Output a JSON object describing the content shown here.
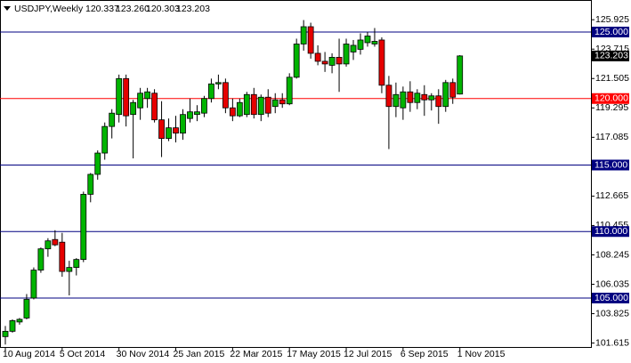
{
  "chart_data": {
    "type": "candlestick",
    "title": "USDJPY,Weekly",
    "header_ohlc": [
      "120.337",
      "123.260",
      "120.303",
      "123.203"
    ],
    "categories": [
      "10 Aug 2014",
      null,
      null,
      null,
      null,
      null,
      null,
      null,
      "5 Oct 2014",
      null,
      null,
      null,
      null,
      null,
      null,
      null,
      "30 Nov 2014",
      null,
      null,
      null,
      null,
      null,
      null,
      null,
      "25 Jan 2015",
      null,
      null,
      null,
      null,
      null,
      null,
      null,
      "22 Mar 2015",
      null,
      null,
      null,
      null,
      null,
      null,
      null,
      "17 May 2015",
      null,
      null,
      null,
      null,
      null,
      null,
      null,
      "12 Jul 2015",
      null,
      null,
      null,
      null,
      null,
      null,
      null,
      "6 Sep 2015",
      null,
      null,
      null,
      null,
      null,
      null,
      null,
      "1 Nov 2015"
    ],
    "open": [
      102.1,
      102.5,
      103.2,
      103.5,
      105.0,
      107.1,
      108.7,
      109.4,
      109.2,
      107.0,
      107.3,
      107.9,
      112.8,
      114.3,
      115.9,
      117.9,
      118.8,
      121.5,
      118.8,
      119.3,
      120.0,
      120.4,
      118.4,
      117.0,
      117.8,
      117.4,
      118.5,
      118.8,
      118.9,
      120.0,
      121.1,
      121.2,
      119.3,
      118.7,
      118.8,
      120.3,
      118.8,
      120.1,
      119.4,
      119.9,
      119.6,
      121.6,
      124.1,
      125.4,
      123.4,
      122.8,
      122.5,
      123.1,
      122.6,
      123.5,
      123.7,
      124.2,
      124.1,
      124.4,
      121.0,
      119.4,
      119.3,
      120.5,
      119.7,
      120.3,
      119.9,
      120.2,
      119.4,
      121.2,
      120.337
    ],
    "high": [
      102.9,
      103.4,
      103.5,
      105.3,
      107.3,
      108.8,
      109.5,
      110.1,
      109.9,
      107.8,
      108.0,
      113.0,
      114.4,
      116.1,
      118.2,
      119.2,
      121.8,
      121.8,
      119.9,
      120.8,
      120.8,
      120.7,
      119.8,
      118.5,
      118.7,
      119.2,
      120.0,
      119.5,
      120.2,
      121.5,
      121.8,
      121.5,
      120.0,
      120.0,
      120.5,
      120.8,
      120.3,
      120.7,
      120.4,
      120.4,
      121.9,
      124.5,
      125.9,
      125.7,
      124.0,
      123.5,
      123.4,
      124.5,
      124.5,
      124.4,
      124.9,
      125.0,
      125.3,
      124.6,
      121.7,
      121.2,
      120.9,
      121.3,
      120.7,
      121.0,
      120.4,
      120.7,
      121.4,
      121.5,
      123.26
    ],
    "low": [
      101.5,
      102.4,
      103.0,
      103.4,
      104.9,
      106.9,
      108.1,
      108.9,
      106.6,
      105.2,
      106.7,
      107.7,
      112.2,
      113.9,
      115.4,
      117.0,
      118.2,
      117.9,
      115.5,
      118.4,
      119.3,
      118.2,
      115.6,
      116.8,
      116.7,
      116.9,
      118.2,
      118.3,
      118.6,
      119.7,
      120.7,
      118.9,
      118.3,
      118.6,
      118.6,
      118.5,
      118.3,
      118.6,
      118.9,
      119.3,
      119.5,
      121.5,
      123.6,
      123.0,
      122.5,
      122.0,
      121.9,
      120.5,
      122.4,
      122.9,
      123.3,
      123.9,
      123.9,
      120.4,
      116.2,
      118.6,
      118.4,
      119.0,
      119.2,
      118.7,
      119.1,
      118.1,
      119.0,
      119.6,
      120.303
    ],
    "close": [
      102.5,
      103.3,
      103.4,
      104.9,
      107.1,
      108.7,
      109.3,
      109.0,
      107.0,
      107.3,
      107.9,
      112.8,
      114.3,
      115.9,
      117.9,
      118.9,
      121.5,
      118.7,
      119.7,
      120.4,
      120.5,
      118.4,
      117.0,
      117.8,
      117.4,
      118.8,
      119.0,
      119.0,
      120.0,
      121.1,
      121.2,
      119.3,
      118.7,
      119.7,
      120.3,
      118.8,
      120.1,
      118.9,
      119.9,
      119.6,
      121.6,
      124.1,
      125.4,
      123.4,
      122.8,
      122.6,
      123.1,
      122.6,
      124.1,
      124.0,
      124.4,
      124.7,
      124.3,
      121.0,
      119.4,
      120.3,
      120.5,
      119.7,
      120.4,
      119.9,
      120.2,
      119.4,
      121.2,
      120.1,
      123.203
    ],
    "up_color": "#00b400",
    "down_color": "#e60000",
    "ylim": [
      101.32,
      127.408
    ],
    "yticks": [
      125.925,
      123.715,
      121.505,
      119.295,
      117.085,
      114.875,
      112.665,
      110.455,
      108.245,
      106.035,
      103.825,
      101.615
    ],
    "levels": [
      {
        "value": 125,
        "label": "125.000",
        "color": "#000080"
      },
      {
        "value": 120,
        "label": "120.000",
        "color": "#ff0000"
      },
      {
        "value": 115,
        "label": "115.000",
        "color": "#000080"
      },
      {
        "value": 110,
        "label": "110.000",
        "color": "#000080"
      },
      {
        "value": 105,
        "label": "105.000",
        "color": "#000080"
      }
    ]
  }
}
